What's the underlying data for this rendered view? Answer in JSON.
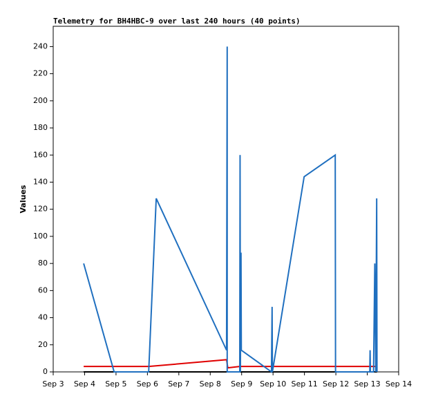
{
  "chart_data": {
    "type": "line",
    "title": "Telemetry for BH4HBC-9 over last 240 hours (40 points)",
    "ylabel": "Values",
    "xlim": [
      3,
      14
    ],
    "xticks": [
      {
        "value": 3,
        "label": "Sep 3"
      },
      {
        "value": 4,
        "label": "Sep 4"
      },
      {
        "value": 5,
        "label": "Sep 5"
      },
      {
        "value": 6,
        "label": "Sep 6"
      },
      {
        "value": 7,
        "label": "Sep 7"
      },
      {
        "value": 8,
        "label": "Sep 8"
      },
      {
        "value": 9,
        "label": "Sep 9"
      },
      {
        "value": 10,
        "label": "Sep 10"
      },
      {
        "value": 11,
        "label": "Sep 11"
      },
      {
        "value": 12,
        "label": "Sep 12"
      },
      {
        "value": 13,
        "label": "Sep 13"
      },
      {
        "value": 14,
        "label": "Sep 14"
      }
    ],
    "ylim": [
      0,
      255
    ],
    "yticks": [
      0,
      20,
      40,
      60,
      80,
      100,
      120,
      140,
      160,
      180,
      200,
      220,
      240
    ],
    "series": [
      {
        "color": "#000000",
        "x": [
          3.97,
          13.31
        ],
        "values": [
          0,
          0
        ]
      },
      {
        "color": "#e00000",
        "x": [
          3.97,
          6.04,
          8.52,
          8.56,
          8.94,
          13.31
        ],
        "values": [
          4,
          4,
          9,
          3,
          4,
          4
        ]
      },
      {
        "color": "#1f6fbf",
        "x": [
          3.97,
          4.94,
          6.04,
          6.28,
          8.52,
          8.54,
          8.54,
          8.94,
          8.95,
          8.96,
          8.98,
          8.99,
          9.95,
          9.97,
          9.98,
          10.99,
          11.98,
          11.99,
          13.08,
          13.09,
          13.1,
          13.2,
          13.24,
          13.27,
          13.3,
          13.31
        ],
        "values": [
          80,
          0,
          0,
          128,
          16,
          240,
          0,
          0,
          160,
          0,
          88,
          16,
          0,
          48,
          0,
          144,
          160,
          0,
          0,
          16,
          0,
          0,
          80,
          0,
          128,
          0
        ]
      }
    ]
  }
}
